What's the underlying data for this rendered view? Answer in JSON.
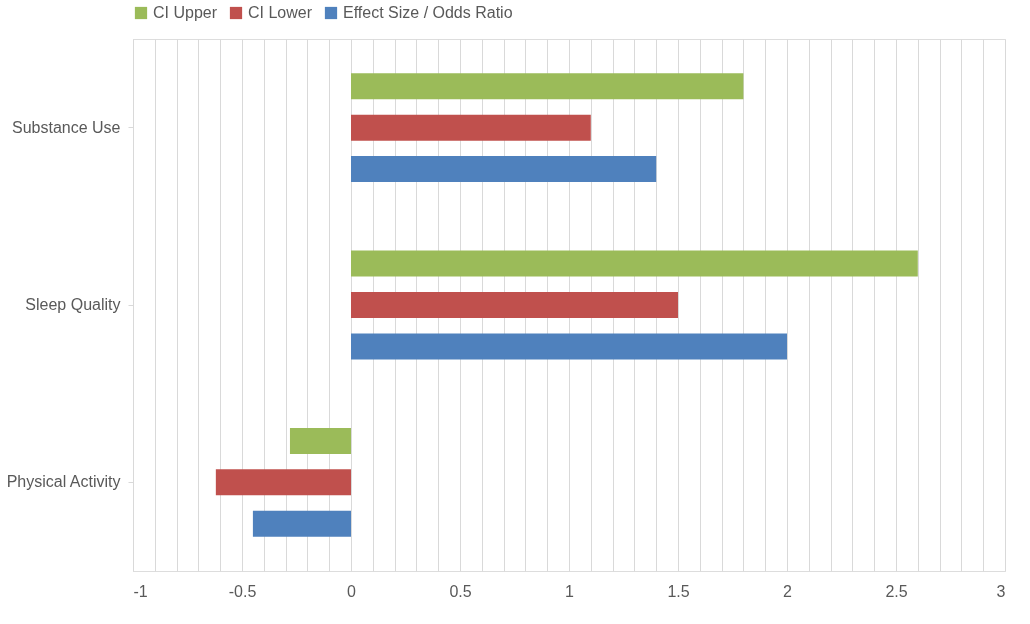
{
  "chart_data": {
    "type": "bar",
    "orientation": "horizontal",
    "categories": [
      "Substance Use",
      "Sleep Quality",
      "Physical Activity"
    ],
    "series": [
      {
        "name": "CI Upper",
        "color": "#9bbb59",
        "values": [
          1.8,
          2.6,
          -0.28
        ]
      },
      {
        "name": "CI Lower",
        "color": "#c0504d",
        "values": [
          1.1,
          1.5,
          -0.62
        ]
      },
      {
        "name": "Effect Size / Odds Ratio",
        "color": "#4f81bd",
        "values": [
          1.4,
          2.0,
          -0.45
        ]
      }
    ],
    "xlim": [
      -1,
      3
    ],
    "xticks": [
      -1,
      {
        "value": -0.9,
        "label": null
      },
      {
        "value": -0.8,
        "label": null
      },
      {
        "value": -0.7,
        "label": null
      },
      {
        "value": -0.6,
        "label": null
      },
      -0.5,
      {
        "value": -0.4,
        "label": null
      },
      {
        "value": -0.3,
        "label": null
      },
      {
        "value": -0.2,
        "label": null
      },
      {
        "value": -0.1,
        "label": null
      },
      0,
      {
        "value": 0.1,
        "label": null
      },
      {
        "value": 0.2,
        "label": null
      },
      {
        "value": 0.3,
        "label": null
      },
      {
        "value": 0.4,
        "label": null
      },
      0.5,
      {
        "value": 0.6,
        "label": null
      },
      {
        "value": 0.7,
        "label": null
      },
      {
        "value": 0.8,
        "label": null
      },
      {
        "value": 0.9,
        "label": null
      },
      1,
      {
        "value": 1.1,
        "label": null
      },
      {
        "value": 1.2,
        "label": null
      },
      {
        "value": 1.3,
        "label": null
      },
      {
        "value": 1.4,
        "label": null
      },
      1.5,
      {
        "value": 1.6,
        "label": null
      },
      {
        "value": 1.7,
        "label": null
      },
      {
        "value": 1.8,
        "label": null
      },
      {
        "value": 1.9,
        "label": null
      },
      2,
      {
        "value": 2.1,
        "label": null
      },
      {
        "value": 2.2,
        "label": null
      },
      {
        "value": 2.3,
        "label": null
      },
      {
        "value": 2.4,
        "label": null
      },
      2.5,
      {
        "value": 2.6,
        "label": null
      },
      {
        "value": 2.7,
        "label": null
      },
      {
        "value": 2.8,
        "label": null
      },
      {
        "value": 2.9,
        "label": null
      },
      3
    ],
    "grid": "x",
    "legend": "top"
  }
}
